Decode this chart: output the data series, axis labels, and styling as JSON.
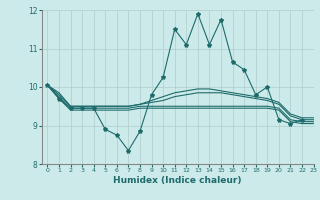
{
  "xlabel": "Humidex (Indice chaleur)",
  "ylabel": "",
  "xlim": [
    -0.5,
    23
  ],
  "ylim": [
    8,
    12
  ],
  "yticks": [
    8,
    9,
    10,
    11,
    12
  ],
  "xticks": [
    0,
    1,
    2,
    3,
    4,
    5,
    6,
    7,
    8,
    9,
    10,
    11,
    12,
    13,
    14,
    15,
    16,
    17,
    18,
    19,
    20,
    21,
    22,
    23
  ],
  "background_color": "#cdeaea",
  "grid_color": "#b0cccc",
  "line_color": "#1e6b6b",
  "series": [
    [
      10.05,
      9.7,
      9.45,
      9.45,
      9.45,
      8.9,
      8.75,
      8.35,
      8.85,
      9.8,
      10.25,
      11.5,
      11.1,
      11.9,
      11.1,
      11.75,
      10.65,
      10.45,
      9.8,
      10.0,
      9.15,
      9.05,
      9.15,
      null
    ],
    [
      10.05,
      9.85,
      9.5,
      9.5,
      9.5,
      9.5,
      9.5,
      9.5,
      9.55,
      9.65,
      9.75,
      9.85,
      9.9,
      9.95,
      9.95,
      9.9,
      9.85,
      9.8,
      9.75,
      9.7,
      9.6,
      9.3,
      9.2,
      9.2
    ],
    [
      10.05,
      9.8,
      9.5,
      9.5,
      9.5,
      9.5,
      9.5,
      9.5,
      9.55,
      9.6,
      9.65,
      9.75,
      9.8,
      9.85,
      9.85,
      9.85,
      9.8,
      9.75,
      9.7,
      9.65,
      9.55,
      9.25,
      9.15,
      9.15
    ],
    [
      10.05,
      9.75,
      9.45,
      9.45,
      9.45,
      9.45,
      9.45,
      9.45,
      9.5,
      9.5,
      9.5,
      9.5,
      9.5,
      9.5,
      9.5,
      9.5,
      9.5,
      9.5,
      9.5,
      9.5,
      9.45,
      9.15,
      9.1,
      9.1
    ],
    [
      10.05,
      9.7,
      9.4,
      9.4,
      9.4,
      9.4,
      9.4,
      9.4,
      9.45,
      9.45,
      9.45,
      9.45,
      9.45,
      9.45,
      9.45,
      9.45,
      9.45,
      9.45,
      9.45,
      9.45,
      9.4,
      9.1,
      9.05,
      9.05
    ]
  ],
  "marker": "*",
  "markersize": 3,
  "linewidth": 0.8
}
